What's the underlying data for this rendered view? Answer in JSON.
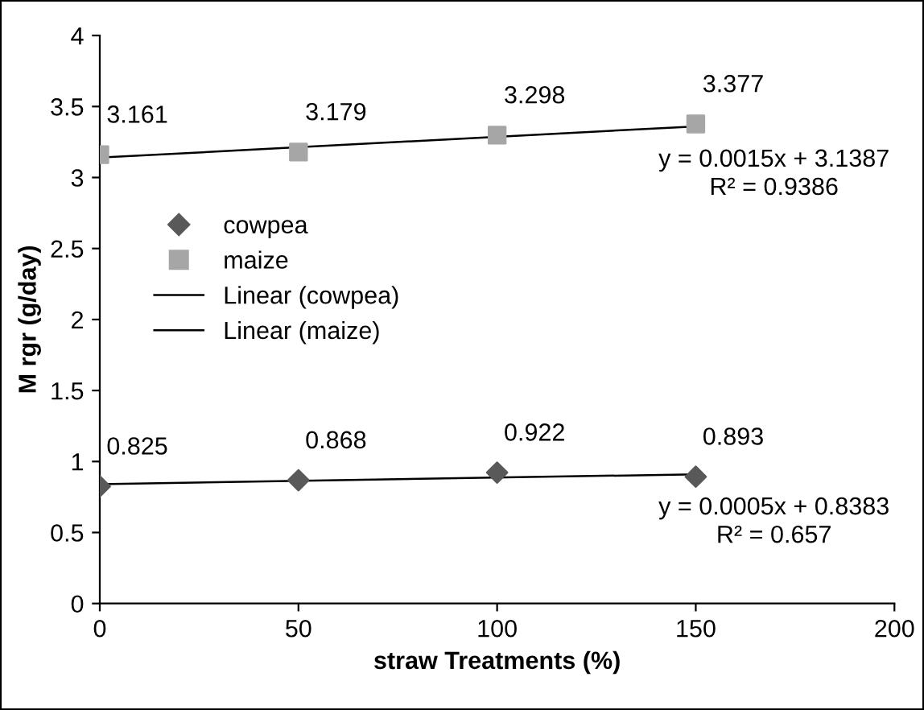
{
  "chart_data": {
    "type": "scatter",
    "xlabel": "straw Treatments (%)",
    "ylabel": "M rgr (g/day)",
    "xlim": [
      0,
      200
    ],
    "xticks": [
      0,
      50,
      100,
      150,
      200
    ],
    "ylim": [
      0,
      4
    ],
    "yticks": [
      0,
      0.5,
      1,
      1.5,
      2,
      2.5,
      3,
      3.5,
      4
    ],
    "grid": false,
    "legend": "left",
    "series": [
      {
        "name": "cowpea",
        "marker": "diamond",
        "color": "#595959",
        "x": [
          0,
          50,
          100,
          150
        ],
        "values": [
          0.825,
          0.868,
          0.922,
          0.893
        ],
        "value_labels": [
          "0.825",
          "0.868",
          "0.922",
          "0.893"
        ]
      },
      {
        "name": "maize",
        "marker": "square",
        "color": "#a6a6a6",
        "x": [
          0,
          50,
          100,
          150
        ],
        "values": [
          3.161,
          3.179,
          3.298,
          3.377
        ],
        "value_labels": [
          "3.161",
          "3.179",
          "3.298",
          "3.377"
        ]
      },
      {
        "name": "Linear (cowpea)",
        "type": "line",
        "marker": "none",
        "line_style": "solid",
        "color": "#000000",
        "x": [
          0,
          150
        ],
        "values": [
          0.84,
          0.91
        ]
      },
      {
        "name": "Linear (maize)",
        "type": "line",
        "marker": "none",
        "line_style": "solid",
        "color": "#000000",
        "x": [
          0,
          150
        ],
        "values": [
          3.14,
          3.36
        ]
      }
    ],
    "annotations": [
      {
        "text": "y = 0.0015x + 3.1387\nR² = 0.9386",
        "x": 150,
        "y": 3.36
      },
      {
        "text": "y = 0.0005x + 0.8383\nR² = 0.657",
        "x": 150,
        "y": 0.91
      }
    ]
  }
}
